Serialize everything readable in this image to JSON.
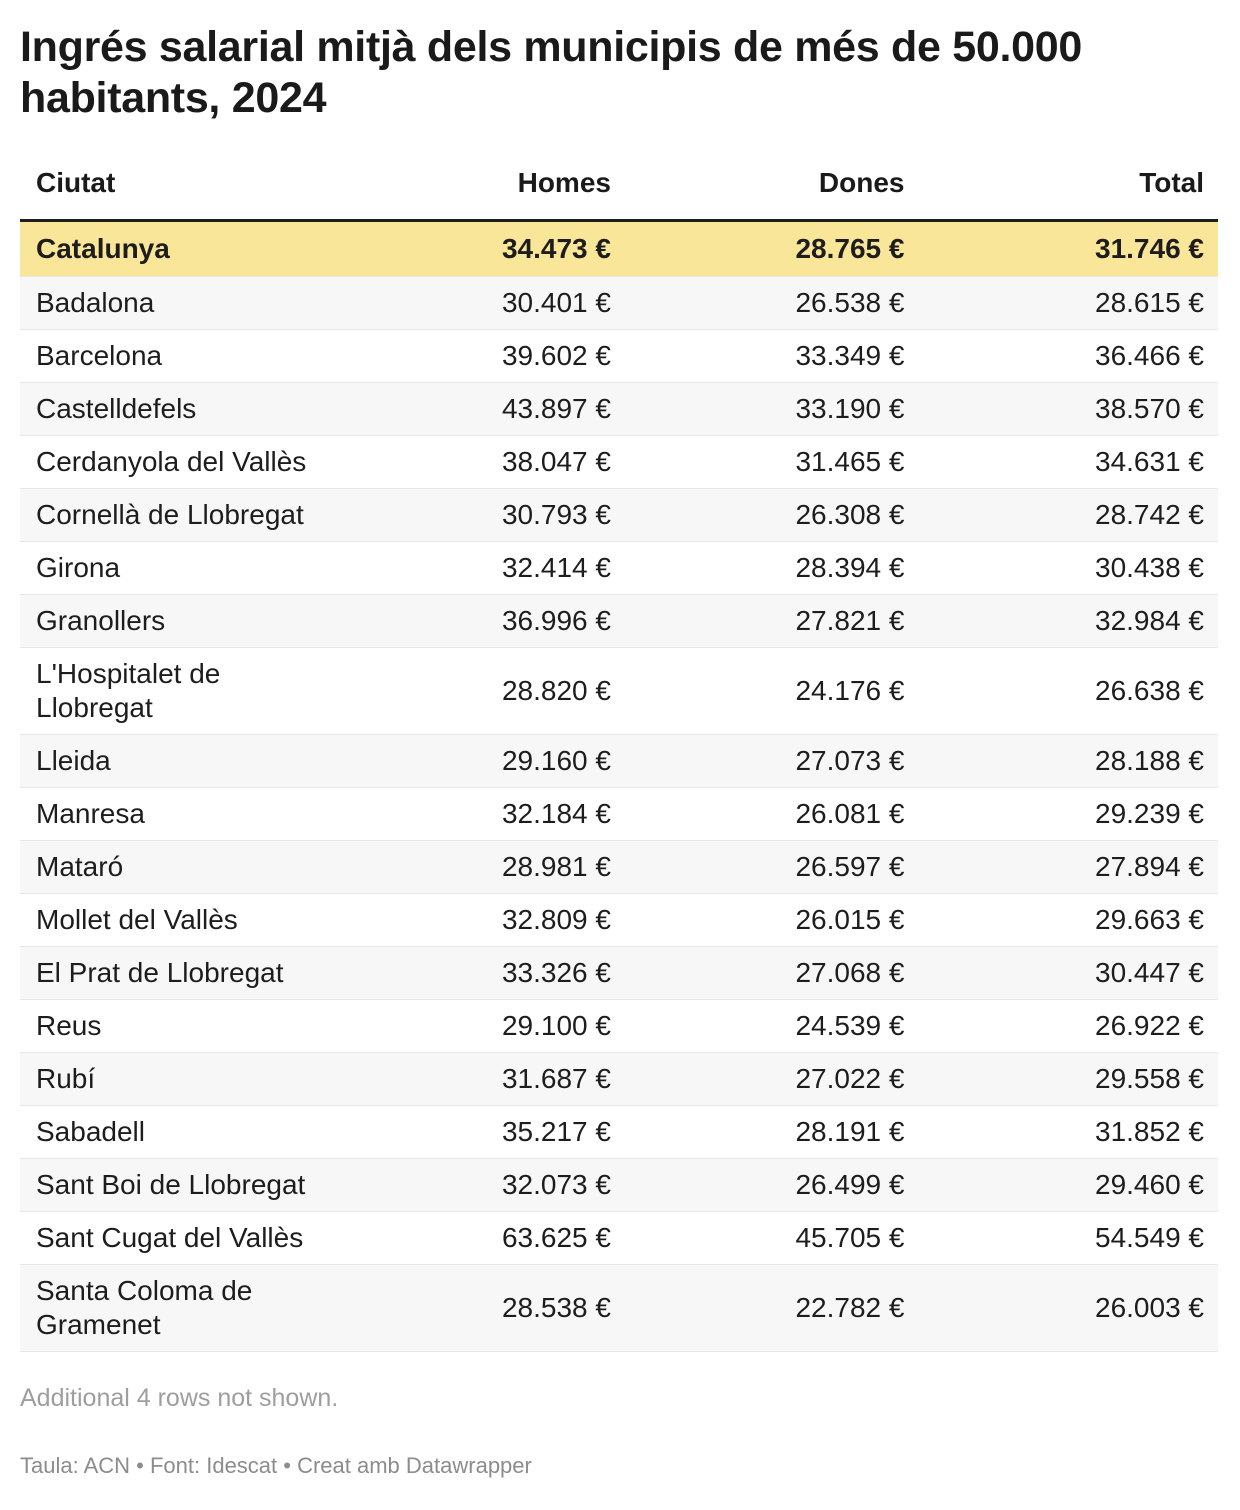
{
  "title": "Ingrés salarial mitjà dels municipis de més de 50.000 habitants, 2024",
  "chart_data": {
    "type": "table",
    "title": "Ingrés salarial mitjà dels municipis de més de 50.000 habitants, 2024",
    "columns": [
      "Ciutat",
      "Homes",
      "Dones",
      "Total"
    ],
    "unit": "€",
    "highlight_row": "Catalunya",
    "rows": [
      {
        "ciutat": "Catalunya",
        "homes": 34473,
        "dones": 28765,
        "total": 31746,
        "highlight": true
      },
      {
        "ciutat": "Badalona",
        "homes": 30401,
        "dones": 26538,
        "total": 28615
      },
      {
        "ciutat": "Barcelona",
        "homes": 39602,
        "dones": 33349,
        "total": 36466
      },
      {
        "ciutat": "Castelldefels",
        "homes": 43897,
        "dones": 33190,
        "total": 38570
      },
      {
        "ciutat": "Cerdanyola del Vallès",
        "homes": 38047,
        "dones": 31465,
        "total": 34631
      },
      {
        "ciutat": "Cornellà de Llobregat",
        "homes": 30793,
        "dones": 26308,
        "total": 28742
      },
      {
        "ciutat": "Girona",
        "homes": 32414,
        "dones": 28394,
        "total": 30438
      },
      {
        "ciutat": "Granollers",
        "homes": 36996,
        "dones": 27821,
        "total": 32984
      },
      {
        "ciutat": "L'Hospitalet de Llobregat",
        "homes": 28820,
        "dones": 24176,
        "total": 26638
      },
      {
        "ciutat": "Lleida",
        "homes": 29160,
        "dones": 27073,
        "total": 28188
      },
      {
        "ciutat": "Manresa",
        "homes": 32184,
        "dones": 26081,
        "total": 29239
      },
      {
        "ciutat": "Mataró",
        "homes": 28981,
        "dones": 26597,
        "total": 27894
      },
      {
        "ciutat": "Mollet del Vallès",
        "homes": 32809,
        "dones": 26015,
        "total": 29663
      },
      {
        "ciutat": "El Prat de Llobregat",
        "homes": 33326,
        "dones": 27068,
        "total": 30447
      },
      {
        "ciutat": "Reus",
        "homes": 29100,
        "dones": 24539,
        "total": 26922
      },
      {
        "ciutat": "Rubí",
        "homes": 31687,
        "dones": 27022,
        "total": 29558
      },
      {
        "ciutat": "Sabadell",
        "homes": 35217,
        "dones": 28191,
        "total": 31852
      },
      {
        "ciutat": "Sant Boi de Llobregat",
        "homes": 32073,
        "dones": 26499,
        "total": 29460
      },
      {
        "ciutat": "Sant Cugat del Vallès",
        "homes": 63625,
        "dones": 45705,
        "total": 54549
      },
      {
        "ciutat": "Santa Coloma de Gramenet",
        "homes": 28538,
        "dones": 22782,
        "total": 26003
      }
    ]
  },
  "notes": {
    "additional_rows": "Additional 4 rows not shown."
  },
  "footer": {
    "attribution": "Taula: ACN • Font: Idescat • Creat amb Datawrapper"
  },
  "colors": {
    "highlight_row_bg": "#F9E699",
    "stripe_bg": "#F7F7F7",
    "header_rule": "#1D1D1D",
    "text": "#1D1D1D",
    "note_text": "#9E9E9E",
    "attribution_text": "#8C8C8C"
  }
}
